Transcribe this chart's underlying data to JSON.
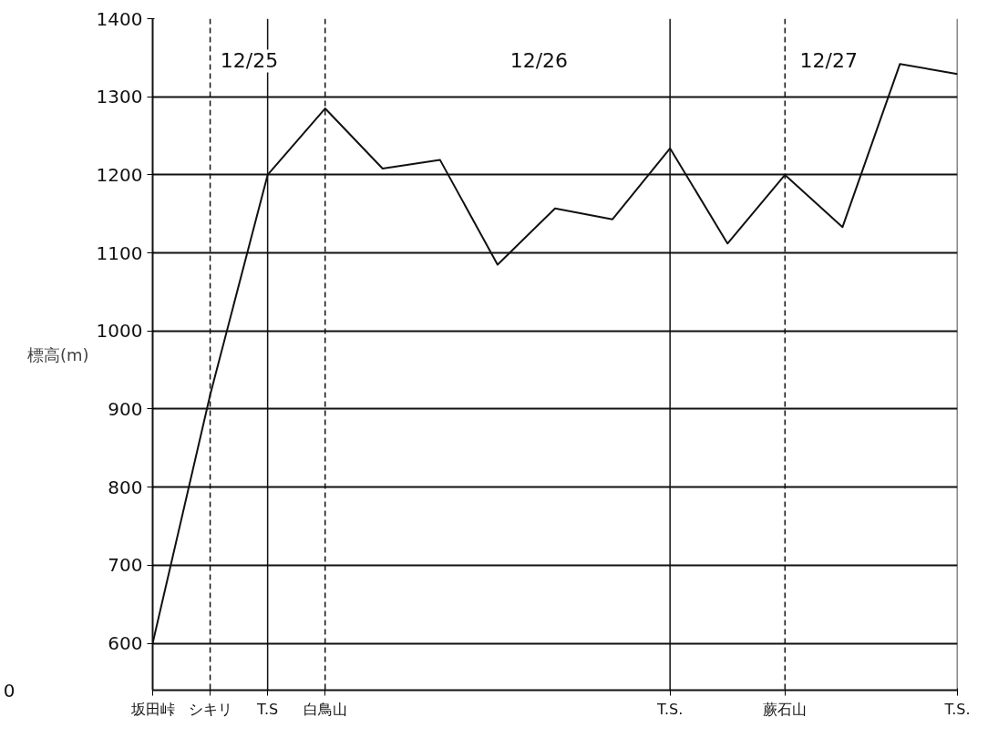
{
  "chart_data": {
    "type": "line",
    "ylabel": "標高(m)",
    "categories": [
      "坂田峠",
      "シキリ",
      "T.S",
      "白鳥山",
      null,
      null,
      null,
      null,
      null,
      "T.S.",
      null,
      "蕨石山",
      null,
      null,
      "T.S."
    ],
    "series": [
      {
        "color": "#111111",
        "values": [
          600,
          918,
          1200,
          1285,
          1208,
          1219,
          1085,
          1157,
          1143,
          1234,
          1112,
          1200,
          1133,
          1342,
          1329
        ]
      }
    ],
    "ylim": [
      540,
      1400
    ],
    "yticks": [
      600,
      700,
      800,
      900,
      1000,
      1100,
      1200,
      1300,
      1400
    ],
    "ref_lines": [
      {
        "axis": "x",
        "value": "シキリ",
        "line_style": "dashed",
        "color": "#111111"
      },
      {
        "axis": "x",
        "value": "T.S",
        "line_style": "solid",
        "color": "#111111"
      },
      {
        "axis": "x",
        "value": "白鳥山",
        "line_style": "dashed",
        "color": "#111111"
      },
      {
        "axis": "x",
        "value": "T.S.",
        "line_style": "solid",
        "color": "#111111"
      },
      {
        "axis": "x",
        "value": "蕨石山",
        "line_style": "dashed",
        "color": "#111111"
      }
    ],
    "annotations": [
      "12/25",
      "12/26",
      "12/27",
      "0"
    ],
    "grid": "y",
    "marker": "none",
    "line_style": "solid"
  }
}
